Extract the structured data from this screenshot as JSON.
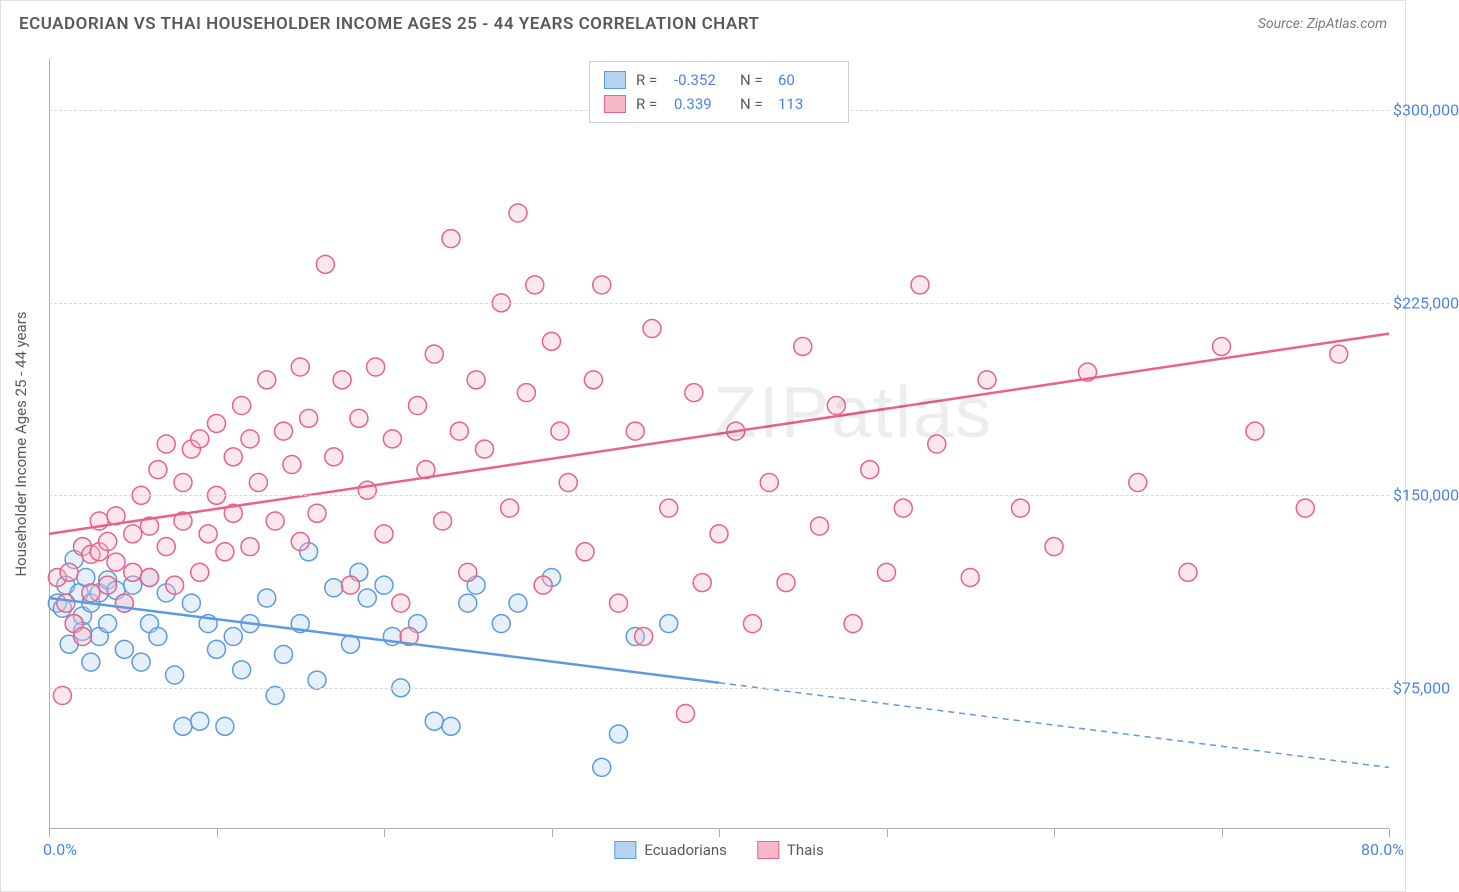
{
  "header": {
    "title": "ECUADORIAN VS THAI HOUSEHOLDER INCOME AGES 25 - 44 YEARS CORRELATION CHART",
    "source": "Source: ZipAtlas.com"
  },
  "watermark": {
    "part1": "ZIP",
    "part2": "atlas"
  },
  "chart": {
    "type": "scatter",
    "ylabel": "Householder Income Ages 25 - 44 years",
    "background_color": "#ffffff",
    "grid_color": "#d8d8d8",
    "axis_color": "#b0b0b0",
    "label_color": "#4a85e8",
    "text_color": "#5a5a5a",
    "xlim": [
      0,
      80
    ],
    "ylim": [
      20000,
      320000
    ],
    "x_ticks": [
      0,
      10,
      20,
      30,
      40,
      50,
      60,
      70,
      80
    ],
    "x_tick_labels": {
      "0": "0.0%",
      "80": "80.0%"
    },
    "y_ticks": [
      75000,
      150000,
      225000,
      300000
    ],
    "y_tick_labels": {
      "75000": "$75,000",
      "150000": "$150,000",
      "225000": "$225,000",
      "300000": "$300,000"
    },
    "marker_radius": 9,
    "marker_stroke_width": 1.5,
    "marker_fill_opacity": 0.35,
    "trend_line_width": 2.5,
    "series": [
      {
        "name": "Ecuadorians",
        "color": "#5c9be0",
        "fill": "#b6d3f0",
        "R": "-0.352",
        "N": "60",
        "trend": {
          "x1": 0,
          "y1": 110000,
          "x2_solid": 40,
          "y2_solid": 77000,
          "x2_dash": 80,
          "y2_dash": 44000
        },
        "points": [
          [
            0.5,
            108000
          ],
          [
            0.8,
            106000
          ],
          [
            1.0,
            115000
          ],
          [
            1.2,
            92000
          ],
          [
            1.5,
            100000
          ],
          [
            1.5,
            125000
          ],
          [
            1.8,
            112000
          ],
          [
            2.0,
            103000
          ],
          [
            2.0,
            97000
          ],
          [
            2.2,
            118000
          ],
          [
            2.5,
            85000
          ],
          [
            2.5,
            108000
          ],
          [
            3.0,
            112000
          ],
          [
            3.0,
            95000
          ],
          [
            3.5,
            117000
          ],
          [
            3.5,
            100000
          ],
          [
            4.0,
            113000
          ],
          [
            4.5,
            90000
          ],
          [
            4.5,
            108000
          ],
          [
            5.0,
            115000
          ],
          [
            5.5,
            85000
          ],
          [
            6.0,
            100000
          ],
          [
            6.0,
            118000
          ],
          [
            6.5,
            95000
          ],
          [
            7.0,
            112000
          ],
          [
            7.5,
            80000
          ],
          [
            8.0,
            60000
          ],
          [
            8.5,
            108000
          ],
          [
            9.0,
            62000
          ],
          [
            9.5,
            100000
          ],
          [
            10.0,
            90000
          ],
          [
            10.5,
            60000
          ],
          [
            11.0,
            95000
          ],
          [
            11.5,
            82000
          ],
          [
            12.0,
            100000
          ],
          [
            13.0,
            110000
          ],
          [
            13.5,
            72000
          ],
          [
            14.0,
            88000
          ],
          [
            15.0,
            100000
          ],
          [
            15.5,
            128000
          ],
          [
            16.0,
            78000
          ],
          [
            17.0,
            114000
          ],
          [
            18.0,
            92000
          ],
          [
            18.5,
            120000
          ],
          [
            19.0,
            110000
          ],
          [
            20.0,
            115000
          ],
          [
            20.5,
            95000
          ],
          [
            21.0,
            75000
          ],
          [
            22.0,
            100000
          ],
          [
            23.0,
            62000
          ],
          [
            24.0,
            60000
          ],
          [
            25.0,
            108000
          ],
          [
            25.5,
            115000
          ],
          [
            27.0,
            100000
          ],
          [
            28.0,
            108000
          ],
          [
            30.0,
            118000
          ],
          [
            33.0,
            44000
          ],
          [
            34.0,
            57000
          ],
          [
            35.0,
            95000
          ],
          [
            37.0,
            100000
          ]
        ]
      },
      {
        "name": "Thais",
        "color": "#e8628b",
        "fill": "#f5b9ca",
        "R": "0.339",
        "N": "113",
        "trend": {
          "x1": 0,
          "y1": 135000,
          "x2_solid": 80,
          "y2_solid": 213000
        },
        "points": [
          [
            0.5,
            118000
          ],
          [
            0.8,
            72000
          ],
          [
            1.0,
            108000
          ],
          [
            1.2,
            120000
          ],
          [
            1.5,
            100000
          ],
          [
            2.0,
            130000
          ],
          [
            2.0,
            95000
          ],
          [
            2.5,
            127000
          ],
          [
            2.5,
            112000
          ],
          [
            3.0,
            140000
          ],
          [
            3.0,
            128000
          ],
          [
            3.5,
            115000
          ],
          [
            3.5,
            132000
          ],
          [
            4.0,
            124000
          ],
          [
            4.0,
            142000
          ],
          [
            4.5,
            108000
          ],
          [
            5.0,
            135000
          ],
          [
            5.0,
            120000
          ],
          [
            5.5,
            150000
          ],
          [
            6.0,
            118000
          ],
          [
            6.0,
            138000
          ],
          [
            6.5,
            160000
          ],
          [
            7.0,
            130000
          ],
          [
            7.0,
            170000
          ],
          [
            7.5,
            115000
          ],
          [
            8.0,
            155000
          ],
          [
            8.0,
            140000
          ],
          [
            8.5,
            168000
          ],
          [
            9.0,
            120000
          ],
          [
            9.0,
            172000
          ],
          [
            9.5,
            135000
          ],
          [
            10.0,
            150000
          ],
          [
            10.0,
            178000
          ],
          [
            10.5,
            128000
          ],
          [
            11.0,
            165000
          ],
          [
            11.0,
            143000
          ],
          [
            11.5,
            185000
          ],
          [
            12.0,
            130000
          ],
          [
            12.0,
            172000
          ],
          [
            12.5,
            155000
          ],
          [
            13.0,
            195000
          ],
          [
            13.5,
            140000
          ],
          [
            14.0,
            175000
          ],
          [
            14.5,
            162000
          ],
          [
            15.0,
            132000
          ],
          [
            15.0,
            200000
          ],
          [
            15.5,
            180000
          ],
          [
            16.0,
            143000
          ],
          [
            16.5,
            240000
          ],
          [
            17.0,
            165000
          ],
          [
            17.5,
            195000
          ],
          [
            18.0,
            115000
          ],
          [
            18.5,
            180000
          ],
          [
            19.0,
            152000
          ],
          [
            19.5,
            200000
          ],
          [
            20.0,
            135000
          ],
          [
            20.5,
            172000
          ],
          [
            21.0,
            108000
          ],
          [
            21.5,
            95000
          ],
          [
            22.0,
            185000
          ],
          [
            22.5,
            160000
          ],
          [
            23.0,
            205000
          ],
          [
            23.5,
            140000
          ],
          [
            24.0,
            250000
          ],
          [
            24.5,
            175000
          ],
          [
            25.0,
            120000
          ],
          [
            25.5,
            195000
          ],
          [
            26.0,
            168000
          ],
          [
            27.0,
            225000
          ],
          [
            27.5,
            145000
          ],
          [
            28.0,
            260000
          ],
          [
            28.5,
            190000
          ],
          [
            29.0,
            232000
          ],
          [
            29.5,
            115000
          ],
          [
            30.0,
            210000
          ],
          [
            30.5,
            175000
          ],
          [
            31.0,
            155000
          ],
          [
            32.0,
            128000
          ],
          [
            32.5,
            195000
          ],
          [
            33.0,
            232000
          ],
          [
            34.0,
            108000
          ],
          [
            35.0,
            175000
          ],
          [
            35.5,
            95000
          ],
          [
            36.0,
            215000
          ],
          [
            37.0,
            145000
          ],
          [
            38.0,
            65000
          ],
          [
            38.5,
            190000
          ],
          [
            39.0,
            116000
          ],
          [
            40.0,
            135000
          ],
          [
            41.0,
            175000
          ],
          [
            42.0,
            100000
          ],
          [
            43.0,
            155000
          ],
          [
            44.0,
            116000
          ],
          [
            45.0,
            208000
          ],
          [
            46.0,
            138000
          ],
          [
            47.0,
            185000
          ],
          [
            48.0,
            100000
          ],
          [
            49.0,
            160000
          ],
          [
            50.0,
            120000
          ],
          [
            51.0,
            145000
          ],
          [
            52.0,
            232000
          ],
          [
            53.0,
            170000
          ],
          [
            55.0,
            118000
          ],
          [
            56.0,
            195000
          ],
          [
            58.0,
            145000
          ],
          [
            60.0,
            130000
          ],
          [
            62.0,
            198000
          ],
          [
            65.0,
            155000
          ],
          [
            68.0,
            120000
          ],
          [
            70.0,
            208000
          ],
          [
            72.0,
            175000
          ],
          [
            75.0,
            145000
          ],
          [
            77.0,
            205000
          ]
        ]
      }
    ],
    "bottom_legend": [
      {
        "label": "Ecuadorians",
        "fill": "#b6d3f0",
        "stroke": "#5c9be0"
      },
      {
        "label": "Thais",
        "fill": "#f5b9ca",
        "stroke": "#e8628b"
      }
    ]
  }
}
